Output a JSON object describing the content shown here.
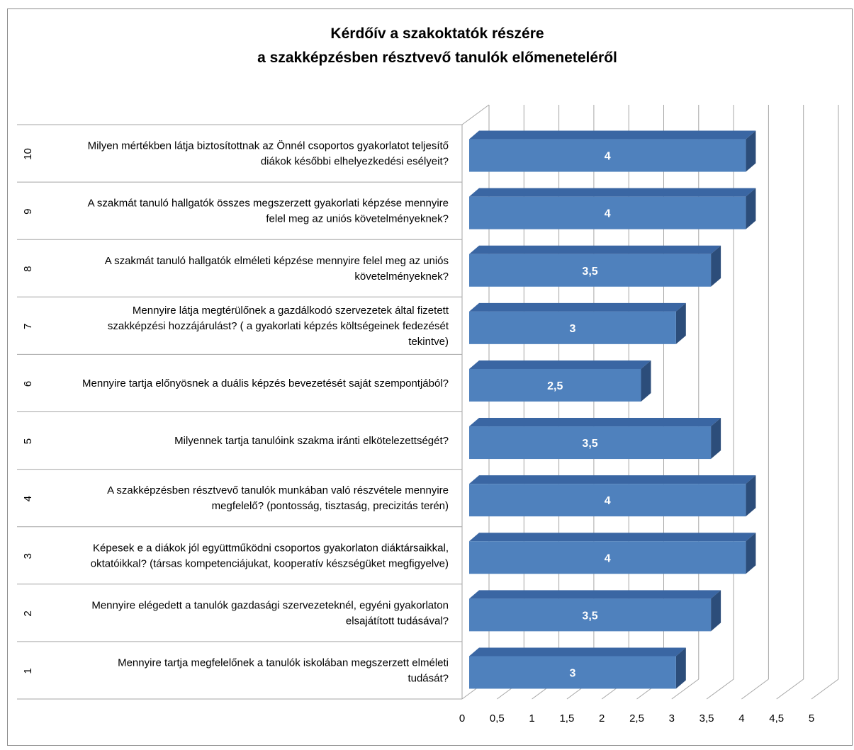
{
  "chart_data": {
    "type": "bar",
    "orientation": "horizontal",
    "three_d": true,
    "title_lines": [
      "Kérdőív a szakoktatók részére",
      "a szakképzésben résztvevő tanulók előmeneteléről"
    ],
    "categories": [
      {
        "number": "1",
        "question_lines": [
          "Mennyire tartja megfelelőnek a tanulók iskolában megszerzett elméleti",
          "tudását?"
        ]
      },
      {
        "number": "2",
        "question_lines": [
          "Mennyire elégedett  a tanulók gazdasági szervezeteknél, egyéni gyakorlaton",
          "elsajátított tudásával?"
        ]
      },
      {
        "number": "3",
        "question_lines": [
          "Képesek e a diákok jól együttműködni csoportos gyakorlaton diáktársaikkal,",
          "oktatóikkal? (társas kompetenciájukat, kooperatív készségüket megfigyelve)"
        ]
      },
      {
        "number": "4",
        "question_lines": [
          "A szakképzésben résztvevő tanulók munkában való részvétele mennyire",
          "megfelelő? (pontosság, tisztaság, precizitás terén)"
        ]
      },
      {
        "number": "5",
        "question_lines": [
          "Milyennek tartja tanulóink szakma iránti elkötelezettségét?"
        ]
      },
      {
        "number": "6",
        "question_lines": [
          "Mennyire tartja előnyösnek a duális képzés bevezetését saját szempontjából?"
        ]
      },
      {
        "number": "7",
        "question_lines": [
          "Mennyire látja megtérülőnek a gazdálkodó szervezetek által fizetett",
          "szakképzési hozzájárulást? ( a gyakorlati képzés költségeinek fedezését",
          "tekintve)"
        ]
      },
      {
        "number": "8",
        "question_lines": [
          "A szakmát tanuló hallgatók elméleti  képzése mennyire felel meg az uniós",
          "követelményeknek?"
        ]
      },
      {
        "number": "9",
        "question_lines": [
          "A szakmát tanuló hallgatók összes megszerzett gyakorlati képzése mennyire",
          "felel meg az uniós követelményeknek?"
        ]
      },
      {
        "number": "10",
        "question_lines": [
          "Milyen mértékben látja biztosítottnak az Önnél csoportos gyakorlatot teljesítő",
          "diákok későbbi elhelyezkedési esélyeit?"
        ]
      }
    ],
    "values": [
      3,
      3.5,
      4,
      4,
      3.5,
      2.5,
      3,
      3.5,
      4,
      4
    ],
    "value_labels": [
      "3",
      "3,5",
      "4",
      "4",
      "3,5",
      "2,5",
      "3",
      "3,5",
      "4",
      "4"
    ],
    "xlim": [
      0,
      5
    ],
    "x_ticks": [
      0,
      0.5,
      1,
      1.5,
      2,
      2.5,
      3,
      3.5,
      4,
      4.5,
      5
    ],
    "x_tick_labels": [
      "0",
      "0,5",
      "1",
      "1,5",
      "2",
      "2,5",
      "3",
      "3,5",
      "4",
      "4,5",
      "5"
    ],
    "grid": true,
    "legend": false,
    "colors": {
      "bar_front": "#4F81BD",
      "bar_top": "#3A66A3",
      "bar_side": "#2C4D7A",
      "grid": "#A6A6A6",
      "label_text": "#ffffff",
      "text": "#000000"
    }
  }
}
